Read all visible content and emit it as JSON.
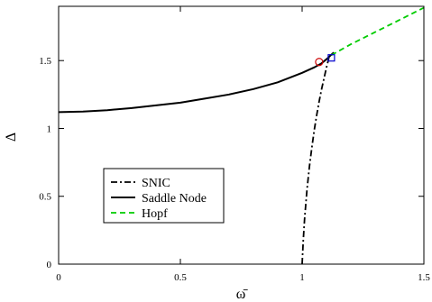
{
  "chart_data": {
    "type": "line",
    "title": "",
    "xlabel": "ω̄",
    "ylabel": "Δ",
    "xlim": [
      0,
      1.5
    ],
    "ylim": [
      0,
      1.9
    ],
    "xticks": [
      0,
      0.5,
      1,
      1.5
    ],
    "xtick_labels": [
      "0",
      "0.5",
      "1",
      "1.5"
    ],
    "yticks": [
      0,
      0.5,
      1,
      1.5
    ],
    "ytick_labels": [
      "0",
      "0.5",
      "1",
      "1.5"
    ],
    "grid": false,
    "legend_position": "bottom-left",
    "series": [
      {
        "name": "SNIC",
        "color": "#000000",
        "style": "dash-dot",
        "x": [
          1.0,
          1.005,
          1.01,
          1.02,
          1.03,
          1.04,
          1.05,
          1.06,
          1.07,
          1.08,
          1.09,
          1.1,
          1.11
        ],
        "y": [
          0.0,
          0.18,
          0.33,
          0.55,
          0.72,
          0.86,
          0.99,
          1.1,
          1.2,
          1.29,
          1.37,
          1.45,
          1.52
        ]
      },
      {
        "name": "Saddle Node",
        "color": "#000000",
        "style": "solid",
        "x": [
          0,
          0.1,
          0.2,
          0.3,
          0.4,
          0.5,
          0.6,
          0.7,
          0.8,
          0.9,
          1.0,
          1.05,
          1.08,
          1.1,
          1.13
        ],
        "y": [
          1.12,
          1.125,
          1.135,
          1.15,
          1.17,
          1.19,
          1.22,
          1.25,
          1.29,
          1.34,
          1.41,
          1.45,
          1.48,
          1.51,
          1.56
        ]
      },
      {
        "name": "Hopf",
        "color": "#00cc00",
        "style": "dashed",
        "x": [
          1.12,
          1.2,
          1.3,
          1.4,
          1.5
        ],
        "y": [
          1.54,
          1.62,
          1.71,
          1.8,
          1.89
        ]
      }
    ],
    "markers": [
      {
        "shape": "circle",
        "color": "#cc0000",
        "x": 1.07,
        "y": 1.49
      },
      {
        "shape": "square",
        "color": "#0000cc",
        "x": 1.12,
        "y": 1.52
      }
    ]
  }
}
